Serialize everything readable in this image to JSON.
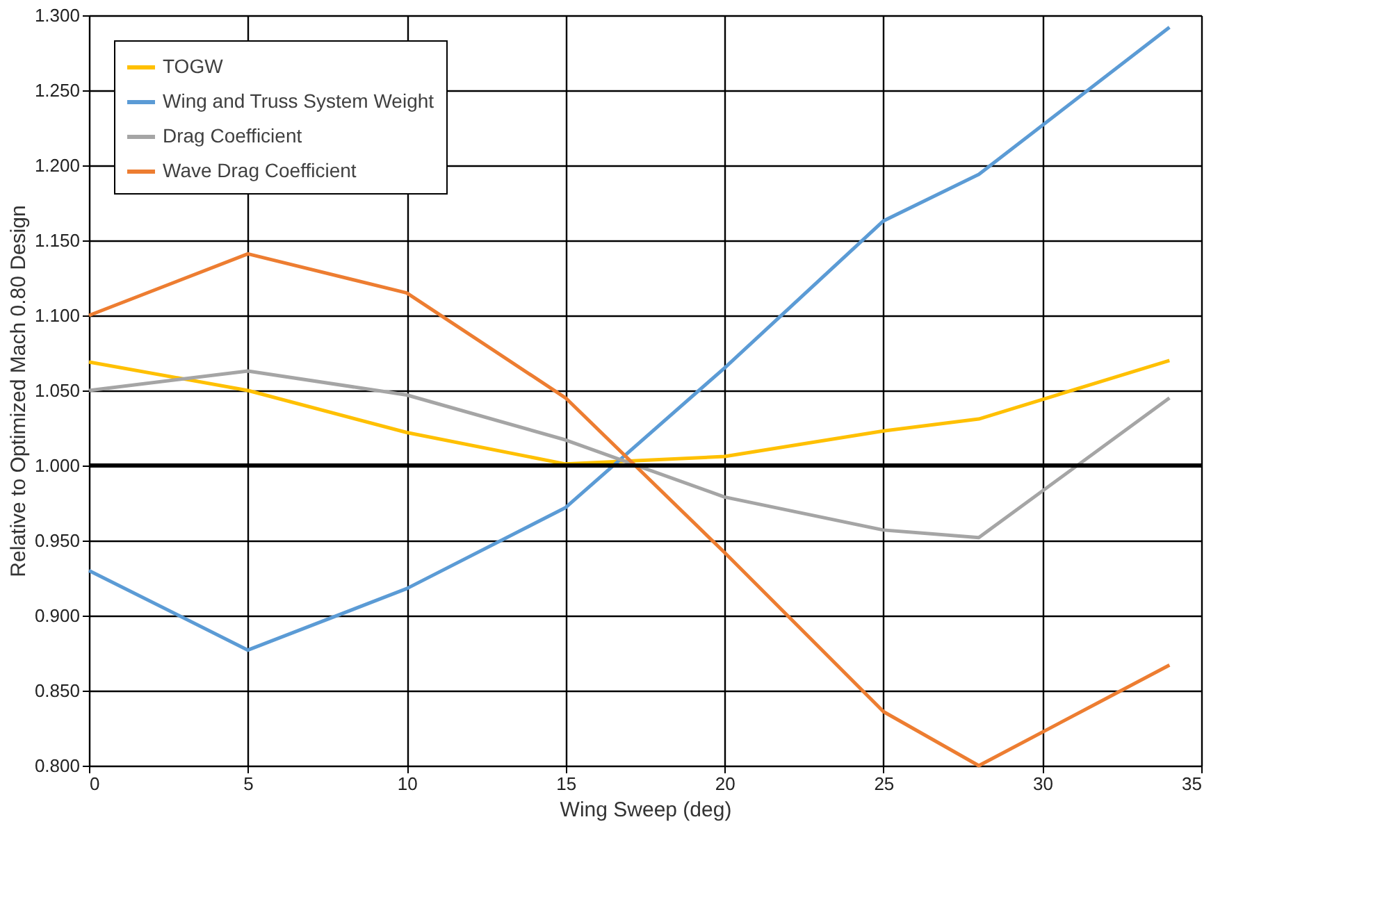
{
  "chart_data": {
    "type": "line",
    "xlabel": "Wing Sweep (deg)",
    "ylabel": "Relative to Optimized Mach 0.80 Design",
    "x": [
      0,
      5,
      10,
      15,
      20,
      25,
      28,
      34
    ],
    "series": [
      {
        "name": "TOGW",
        "color": "#ffc000",
        "values": [
          1.069,
          1.05,
          1.022,
          1.001,
          1.006,
          1.023,
          1.031,
          1.07
        ]
      },
      {
        "name": "Wing and Truss System Weight",
        "color": "#5b9bd5",
        "values": [
          0.93,
          0.877,
          0.918,
          0.972,
          1.065,
          1.163,
          1.194,
          1.292
        ]
      },
      {
        "name": "Drag Coefficient",
        "color": "#a5a5a5",
        "values": [
          1.05,
          1.063,
          1.047,
          1.017,
          0.979,
          0.957,
          0.952,
          1.045
        ]
      },
      {
        "name": "Wave Drag Coefficient",
        "color": "#ed7d31",
        "values": [
          1.1,
          1.141,
          1.115,
          1.045,
          0.942,
          0.836,
          0.8,
          0.867
        ]
      }
    ],
    "xlim": [
      0,
      35
    ],
    "xticks": [
      0,
      5,
      10,
      15,
      20,
      25,
      30,
      35
    ],
    "ylim": [
      0.8,
      1.3
    ],
    "yticks": [
      {
        "value": 0.8,
        "label": "0.800"
      },
      {
        "value": 0.85,
        "label": "0.850"
      },
      {
        "value": 0.9,
        "label": "0.900"
      },
      {
        "value": 0.95,
        "label": "0.950"
      },
      {
        "value": 1.0,
        "label": "1.000"
      },
      {
        "value": 1.05,
        "label": "1.050"
      },
      {
        "value": 1.1,
        "label": "1.100"
      },
      {
        "value": 1.15,
        "label": "1.150"
      },
      {
        "value": 1.2,
        "label": "1.200"
      },
      {
        "value": 1.25,
        "label": "1.250"
      },
      {
        "value": 1.3,
        "label": "1.300"
      }
    ],
    "ref_lines": [
      {
        "axis": "y",
        "value": 1.0,
        "color": "#000000"
      }
    ],
    "grid": true,
    "legend": "top left",
    "marker": "none",
    "line_style": "solid"
  }
}
